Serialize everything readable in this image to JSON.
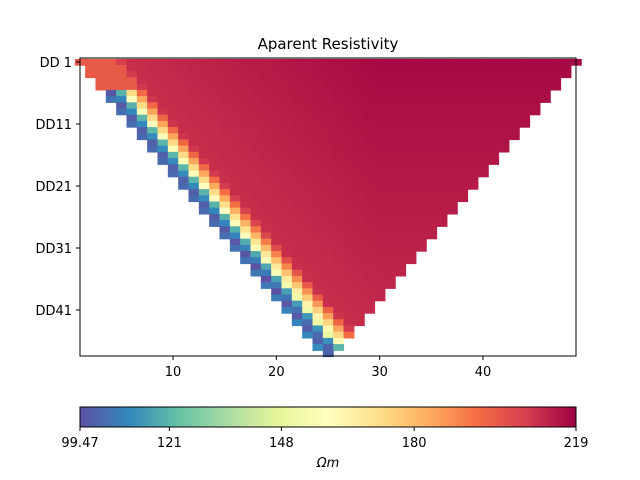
{
  "chart_data": {
    "type": "heatmap",
    "title": "Aparent Resistivity",
    "xlabel": "",
    "ylabel": "",
    "xlim": [
      1,
      49
    ],
    "ylim": [
      1,
      49
    ],
    "x_ticks": [
      10,
      20,
      30,
      40
    ],
    "y_ticks": [
      {
        "value": 1,
        "label": "DD 1"
      },
      {
        "value": 11,
        "label": "DD11"
      },
      {
        "value": 21,
        "label": "DD21"
      },
      {
        "value": 31,
        "label": "DD31"
      },
      {
        "value": 41,
        "label": "DD41"
      }
    ],
    "grid": false,
    "pseudosection": {
      "apex_x": 25,
      "levels": 48,
      "description_of_values": "resistivity per cell in ohm-m"
    },
    "anomaly_band": {
      "low_value": 99.47,
      "background_value": 210
    },
    "colorbar": {
      "min": 99.47,
      "max": 219,
      "tick_labels": [
        "99.47",
        "121",
        "148",
        "180",
        "219"
      ],
      "tick_values": [
        99.47,
        121,
        148,
        180,
        219
      ],
      "label": "Ωm",
      "colormap": "Spectral_r",
      "orientation": "horizontal",
      "placement": "bottom"
    }
  },
  "colors": {
    "spectral_r": [
      "#5e4fa2",
      "#3288bd",
      "#66c2a5",
      "#abdda4",
      "#e6f598",
      "#ffffbf",
      "#fee08b",
      "#fdae61",
      "#f46d43",
      "#d53e4f",
      "#9e0142"
    ]
  }
}
